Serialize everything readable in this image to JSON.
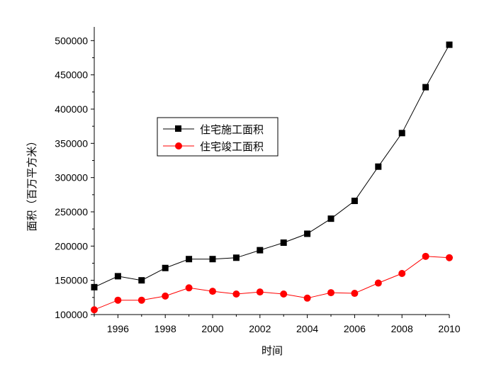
{
  "chart_data": {
    "type": "line",
    "xlabel": "时间",
    "ylabel": "面积（百万平方米）",
    "xlim": [
      1995,
      2010
    ],
    "ylim": [
      100000,
      520000
    ],
    "x_ticks": [
      "1996",
      "1998",
      "2000",
      "2002",
      "2004",
      "2006",
      "2008",
      "2010"
    ],
    "y_ticks": [
      "100000",
      "150000",
      "200000",
      "250000",
      "300000",
      "350000",
      "400000",
      "450000",
      "500000"
    ],
    "legend_position": "upper-left-center, boxed",
    "x": [
      1995,
      1996,
      1997,
      1998,
      1999,
      2000,
      2001,
      2002,
      2003,
      2004,
      2005,
      2006,
      2007,
      2008,
      2009,
      2010
    ],
    "series": [
      {
        "name": "住宅施工面积",
        "color": "#000000",
        "marker": "square",
        "values": [
          140000,
          156000,
          150000,
          168000,
          181000,
          181000,
          183000,
          194000,
          205000,
          218000,
          240000,
          266000,
          316000,
          365000,
          432000,
          494000
        ]
      },
      {
        "name": "住宅竣工面积",
        "color": "#ff0000",
        "marker": "circle",
        "values": [
          107000,
          121000,
          121000,
          127000,
          139000,
          134000,
          130000,
          133000,
          130000,
          124000,
          132000,
          131000,
          146000,
          160000,
          185000,
          183000
        ]
      }
    ]
  }
}
